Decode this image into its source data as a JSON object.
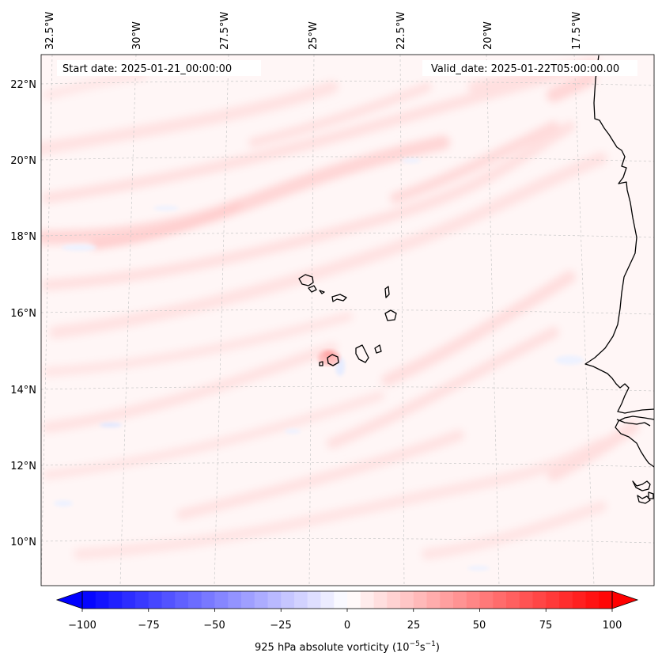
{
  "header": {
    "start_date": "Start date: 2025-01-21_00:00:00",
    "valid_date": "Valid_date: 2025-01-22T05:00:00.00"
  },
  "map": {
    "lon_labels": [
      "32.5°W",
      "30°W",
      "27.5°W",
      "25°W",
      "22.5°W",
      "20°W",
      "17.5°W"
    ],
    "lat_labels": [
      "22°N",
      "20°N",
      "18°N",
      "16°N",
      "14°N",
      "12°N",
      "10°N"
    ],
    "extent": {
      "lon_min": -32.8,
      "lon_max": -16.0,
      "lat_min": 8.9,
      "lat_max": 22.7
    }
  },
  "colorbar": {
    "ticks": [
      "−100",
      "−75",
      "−50",
      "−25",
      "0",
      "25",
      "50",
      "75",
      "100"
    ],
    "tick_values": [
      -100,
      -75,
      -50,
      -25,
      0,
      25,
      50,
      75,
      100
    ],
    "range": [
      -100,
      100
    ],
    "levels": 40,
    "label_prefix": "925 hPa absolute vorticity (10",
    "label_exp1": "−5",
    "label_mid": "s",
    "label_exp2": "−1",
    "label_suffix": ")",
    "low_color": "#0000ff",
    "mid_color": "#ffffff",
    "high_color": "#ff0000"
  },
  "colors": {
    "coastline": "#000000",
    "gridline": "#bfbfbf",
    "field_background": "#fff6f6",
    "positive_band": "#ffdcdc",
    "negative_band": "#eef2ff"
  }
}
